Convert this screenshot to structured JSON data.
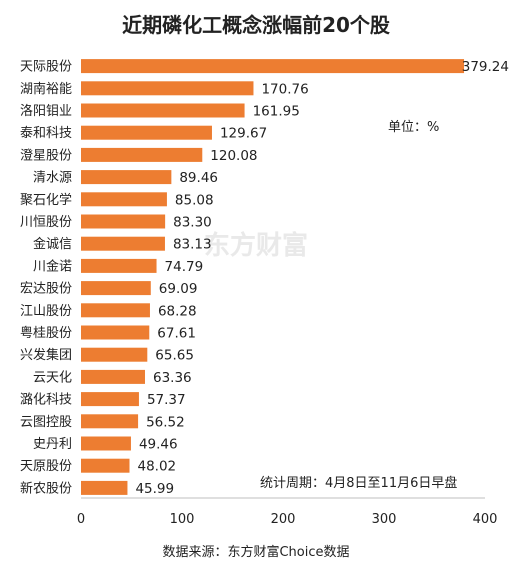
{
  "chart_data": {
    "type": "bar",
    "orientation": "horizontal",
    "title": "近期磷化工概念涨幅前20个股",
    "categories": [
      "天际股份",
      "湖南裕能",
      "洛阳钼业",
      "泰和科技",
      "澄星股份",
      "清水源",
      "聚石化学",
      "川恒股份",
      "金诚信",
      "川金诺",
      "宏达股份",
      "江山股份",
      "粤桂股份",
      "兴发集团",
      "云天化",
      "潞化科技",
      "云图控股",
      "史丹利",
      "天原股份",
      "新农股份"
    ],
    "values": [
      379.24,
      170.76,
      161.95,
      129.67,
      120.08,
      89.46,
      85.08,
      83.3,
      83.13,
      74.79,
      69.09,
      68.28,
      67.61,
      65.65,
      63.36,
      57.37,
      56.52,
      49.46,
      48.02,
      45.99
    ],
    "value_labels": [
      "379.24",
      "170.76",
      "161.95",
      "129.67",
      "120.08",
      "89.46",
      "85.08",
      "83.30",
      "83.13",
      "74.79",
      "69.09",
      "68.28",
      "67.61",
      "65.65",
      "63.36",
      "57.37",
      "56.52",
      "49.46",
      "48.02",
      "45.99"
    ],
    "xlim": [
      0,
      400
    ],
    "xticks": [
      "0",
      "100",
      "200",
      "300",
      "400"
    ],
    "unit_note": "单位：%",
    "period_note": "统计周期：4月8日至11月6日早盘",
    "source": "数据来源：东方财富Choice数据",
    "watermark": "东方财富",
    "grid": false,
    "bar_color": "#ed7d31"
  }
}
